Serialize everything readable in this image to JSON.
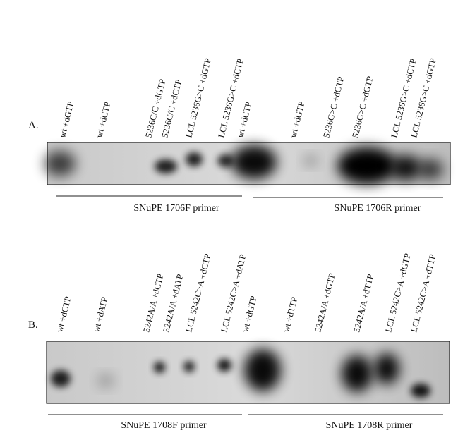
{
  "panels": [
    {
      "label": "A.",
      "lanes": [
        "wt +dGTP",
        "wt +dCTP",
        "5236C/C +dGTP",
        "5236C/C +dCTP",
        "LCL 5236G>C +dGTP",
        "LCL 5236G>C +dCTP",
        "wt +dCTP",
        "wt +dGTP",
        "5236G>C +dCTP",
        "5236G>C +dGTP",
        "LCL 5236G>C +dCTP",
        "LCL 5236G>C +dGTP"
      ],
      "primers": [
        "SNuPE 1706F primer",
        "SNuPE 1706R primer"
      ]
    },
    {
      "label": "B.",
      "lanes": [
        "wt +dCTP",
        "wt +dATP",
        "5242A/A +dCTP",
        "5242A/A +dATP",
        "LCL 5242C>A +dCTP",
        "LCL 5242C>A +dATP",
        "wt +dGTP",
        "wt +dTTP",
        "5242A/A +dGTP",
        "5242A/A +dTTP",
        "LCL 5242C>A +dGTP",
        "LCL 5242C>A +dTTP"
      ],
      "primers": [
        "SNuPE 1708F primer",
        "SNuPE 1708R primer"
      ]
    }
  ]
}
